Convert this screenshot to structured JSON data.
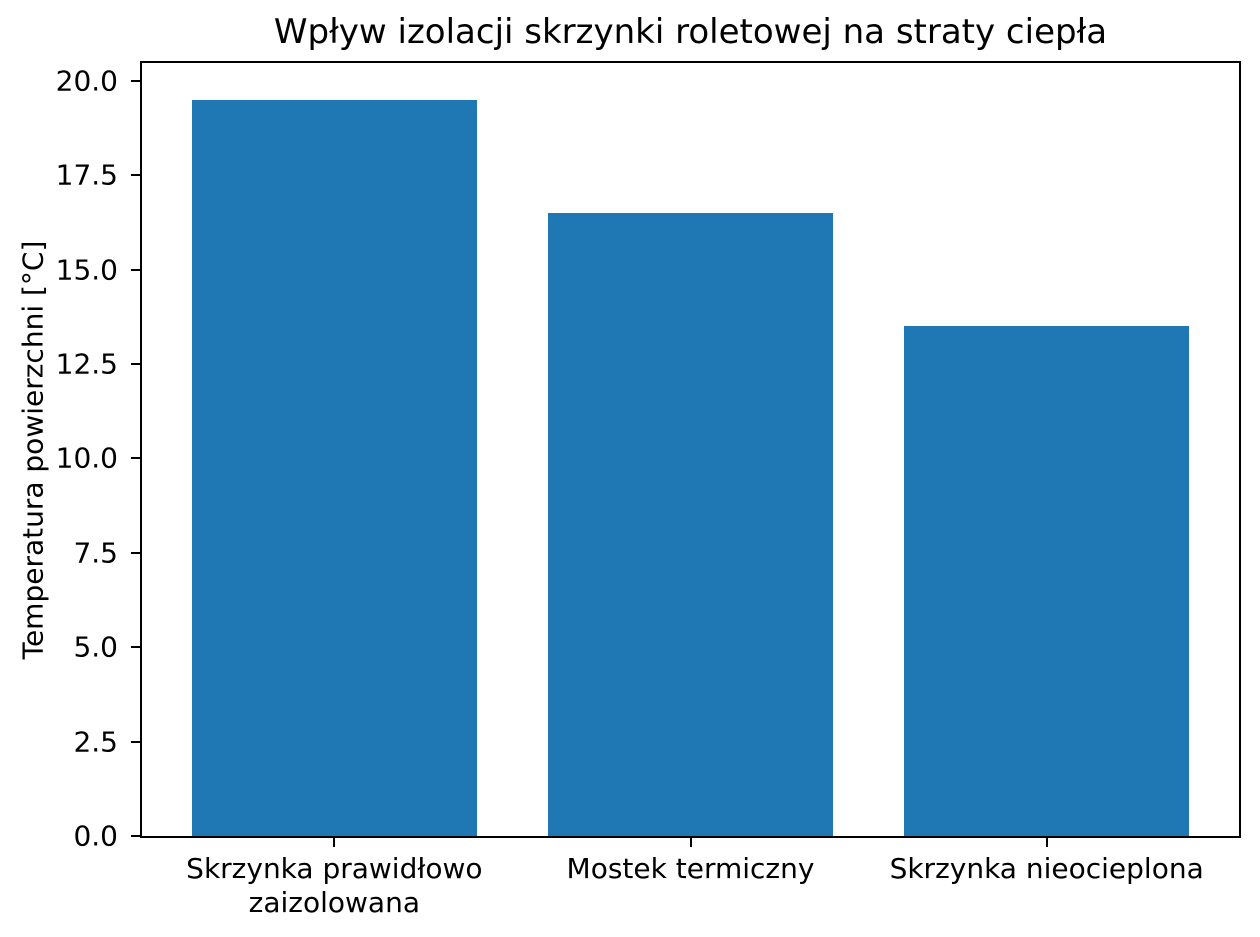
{
  "chart_data": {
    "type": "bar",
    "title": "Wpływ izolacji skrzynki roletowej na straty ciepła",
    "ylabel": "Temperatura powierzchni [°C]",
    "xlabel": "",
    "categories": [
      "Skrzynka prawidłowo\nzaizolowana",
      "Mostek termiczny",
      "Skrzynka nieocieplona"
    ],
    "values": [
      19.5,
      16.5,
      13.5
    ],
    "yticks": [
      0.0,
      2.5,
      5.0,
      7.5,
      10.0,
      12.5,
      15.0,
      17.5,
      20.0
    ],
    "ylim": [
      0,
      20.475
    ],
    "xlim": [
      -0.54,
      2.54
    ],
    "bar_width": 0.8,
    "bar_color": "#1f77b4",
    "grid": false,
    "legend": null
  }
}
